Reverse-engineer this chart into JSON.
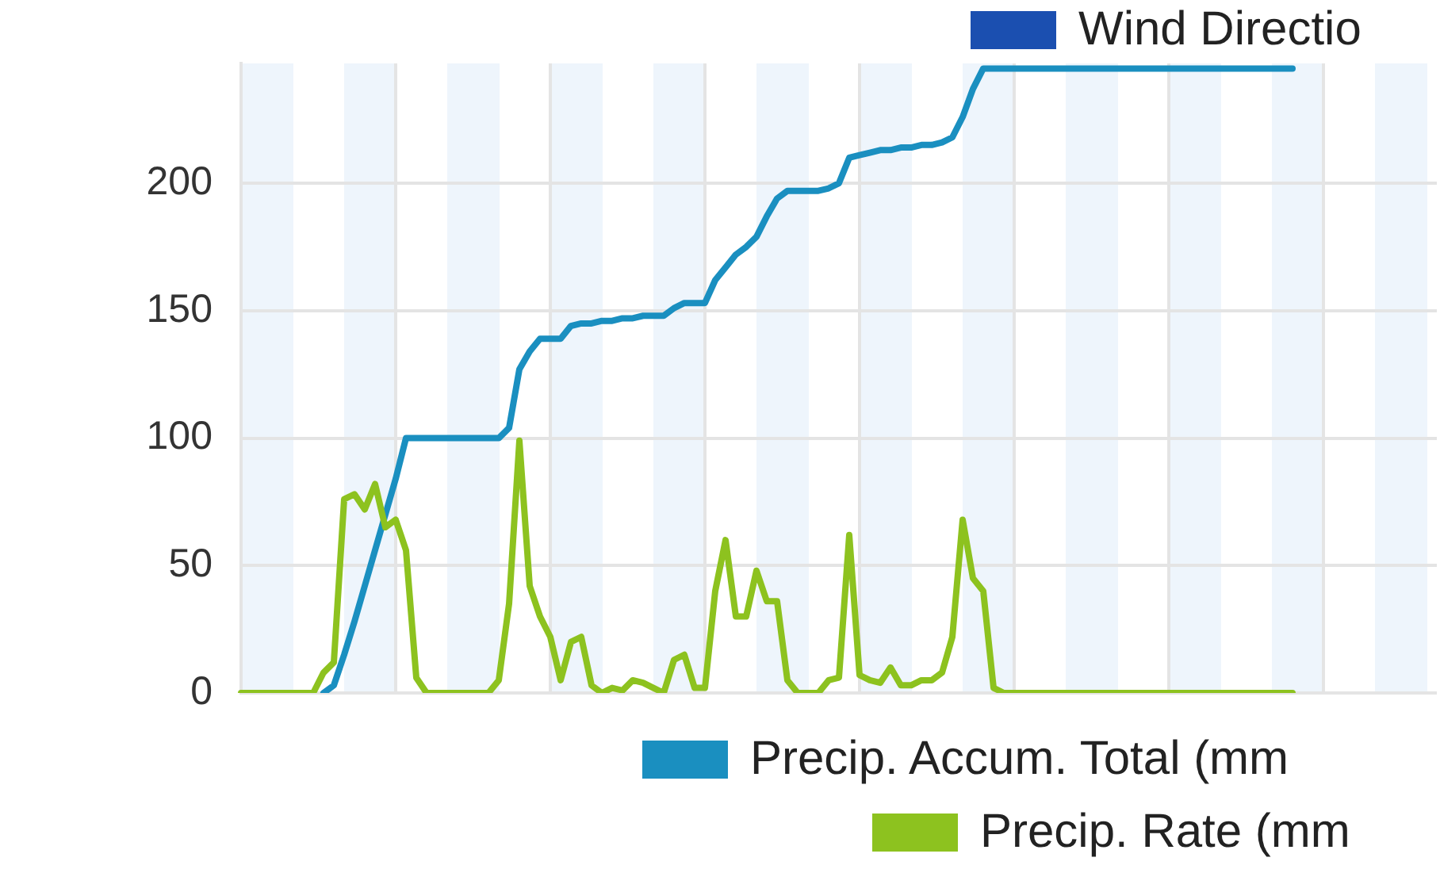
{
  "chart_data": {
    "type": "line",
    "categories": [
      null,
      null,
      null,
      null,
      null,
      null,
      null,
      null,
      null,
      null,
      null,
      null,
      null,
      null,
      null,
      null,
      null,
      null,
      null,
      null,
      null,
      null,
      null,
      null,
      null,
      null,
      null,
      null,
      null,
      null,
      null,
      null,
      null,
      null,
      null,
      null,
      null,
      null,
      null,
      null,
      null,
      null,
      null,
      null,
      null,
      null,
      null,
      null,
      null,
      null,
      null,
      null,
      null,
      null,
      null,
      null,
      null,
      null,
      null,
      null,
      null,
      null,
      null,
      null,
      null,
      null,
      null,
      null,
      null,
      null,
      null,
      null,
      null,
      null,
      null,
      null,
      null,
      null,
      null,
      null,
      null,
      null,
      null,
      null,
      null,
      null,
      null,
      null,
      null,
      null,
      null,
      null,
      null,
      null,
      null,
      null,
      null,
      null,
      null,
      null,
      null,
      null,
      null,
      null,
      null,
      null,
      null,
      null,
      null,
      null,
      null,
      null,
      null,
      null,
      null,
      null,
      null
    ],
    "series": [
      {
        "name": "Wind Directio",
        "color": "#1b4fb0",
        "values": [
          null,
          null,
          null,
          null,
          null,
          null,
          null,
          null,
          null,
          null,
          null,
          null,
          null,
          null,
          null,
          null,
          null,
          null,
          null,
          null,
          null,
          null,
          null,
          null,
          null,
          null,
          null,
          null,
          null,
          null,
          null,
          null,
          null,
          null,
          null,
          null,
          null,
          null,
          null,
          null,
          null,
          null,
          null,
          null,
          null,
          null,
          null,
          null,
          null,
          null,
          null,
          null,
          null,
          null,
          null,
          null,
          null,
          null,
          null,
          null,
          null,
          null,
          null,
          null,
          null,
          null,
          null,
          null,
          null,
          null,
          null,
          null,
          null,
          null,
          null,
          null,
          null,
          null,
          null,
          null,
          null,
          null,
          null,
          null,
          null,
          null,
          null,
          null,
          null,
          null,
          null,
          null,
          null,
          null,
          null,
          null,
          null,
          null,
          null,
          null,
          null,
          null,
          null,
          null,
          null,
          null,
          null,
          null,
          null,
          null,
          null,
          null,
          null,
          null,
          null,
          null,
          null
        ]
      },
      {
        "name": "Precip. Accum. Total (mm",
        "color": "#1a8fc0",
        "values": [
          null,
          null,
          null,
          null,
          null,
          null,
          null,
          null,
          0,
          3,
          15,
          28,
          42,
          56,
          70,
          84,
          100,
          100,
          100,
          100,
          100,
          100,
          100,
          100,
          100,
          100,
          104,
          127,
          134,
          139,
          139,
          139,
          144,
          145,
          145,
          146,
          146,
          147,
          147,
          148,
          148,
          148,
          151,
          153,
          153,
          153,
          162,
          167,
          172,
          175,
          179,
          187,
          194,
          197,
          197,
          197,
          197,
          198,
          200,
          210,
          211,
          212,
          213,
          213,
          214,
          214,
          215,
          215,
          216,
          218,
          226,
          237,
          245,
          245,
          245,
          245,
          245,
          245,
          245,
          245,
          245,
          245,
          245,
          245,
          245,
          245,
          245,
          245,
          245,
          245,
          245,
          245,
          245,
          245,
          245,
          245,
          245,
          245,
          245,
          245,
          245,
          245,
          245,
          null,
          null,
          null,
          null,
          null,
          null,
          null,
          null,
          null,
          null,
          null,
          null,
          null,
          null
        ]
      },
      {
        "name": "Precip. Rate (mm",
        "color": "#8dc21f",
        "values": [
          0,
          0,
          0,
          0,
          0,
          0,
          0,
          0,
          8,
          12,
          76,
          78,
          72,
          82,
          65,
          68,
          56,
          6,
          0,
          0,
          0,
          0,
          0,
          0,
          0,
          5,
          35,
          99,
          42,
          30,
          22,
          5,
          20,
          22,
          3,
          0,
          2,
          1,
          5,
          4,
          2,
          0,
          13,
          15,
          2,
          2,
          40,
          60,
          30,
          30,
          48,
          36,
          36,
          5,
          0,
          0,
          0,
          5,
          6,
          62,
          7,
          5,
          4,
          10,
          3,
          3,
          5,
          5,
          8,
          22,
          68,
          45,
          40,
          2,
          0,
          0,
          0,
          0,
          0,
          0,
          0,
          0,
          0,
          0,
          0,
          0,
          0,
          0,
          0,
          0,
          0,
          0,
          0,
          0,
          0,
          0,
          0,
          0,
          0,
          0,
          0,
          0,
          0,
          null,
          null,
          null,
          null,
          null,
          null,
          null,
          null,
          null,
          null,
          null,
          null,
          null,
          null
        ]
      }
    ],
    "ylim": [
      0,
      247
    ],
    "yticks": [
      0,
      50,
      100,
      150,
      200
    ],
    "grid": true,
    "legend": "bottom",
    "tick_labels": "y",
    "marker": "none",
    "line_style": "solid"
  }
}
